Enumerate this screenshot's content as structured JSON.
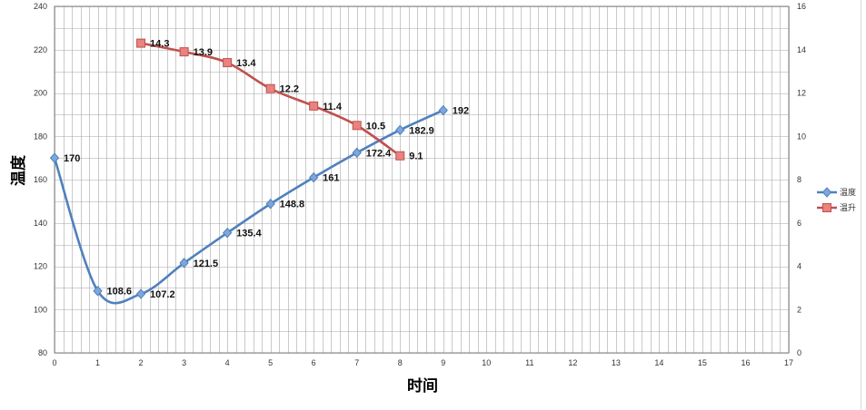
{
  "chart_data": {
    "type": "line",
    "xlabel": "时间",
    "ylabel": "温度",
    "x_range": [
      0,
      17
    ],
    "x_ticks": [
      0,
      1,
      2,
      3,
      4,
      5,
      6,
      7,
      8,
      9,
      10,
      11,
      12,
      13,
      14,
      15,
      16,
      17
    ],
    "y_left_range": [
      80,
      240
    ],
    "y_left_ticks": [
      80,
      100,
      120,
      140,
      160,
      180,
      200,
      220,
      240
    ],
    "y_right_range": [
      0,
      16
    ],
    "y_right_ticks": [
      0,
      2,
      4,
      6,
      8,
      10,
      12,
      14,
      16
    ],
    "grid": true,
    "legend_position": "right",
    "series": [
      {
        "name": "温度",
        "axis": "left",
        "color": "#4F81BD",
        "marker": "diamond",
        "smooth": true,
        "x": [
          0,
          1,
          2,
          3,
          4,
          5,
          6,
          7,
          8,
          9
        ],
        "values": [
          170,
          108.6,
          107.2,
          121.5,
          135.4,
          148.8,
          161,
          172.4,
          182.9,
          192
        ],
        "labels": [
          "170",
          "108.6",
          "107.2",
          "121.5",
          "135.4",
          "148.8",
          "161",
          "172.4",
          "182.9",
          "192"
        ]
      },
      {
        "name": "温升",
        "axis": "right",
        "color": "#C0504D",
        "marker": "square",
        "smooth": true,
        "x": [
          2,
          3,
          4,
          5,
          6,
          7,
          8
        ],
        "values": [
          14.3,
          13.9,
          13.4,
          12.2,
          11.4,
          10.5,
          9.1
        ],
        "labels": [
          "14.3",
          "13.9",
          "13.4",
          "12.2",
          "11.4",
          "10.5",
          "9.1"
        ]
      }
    ]
  }
}
